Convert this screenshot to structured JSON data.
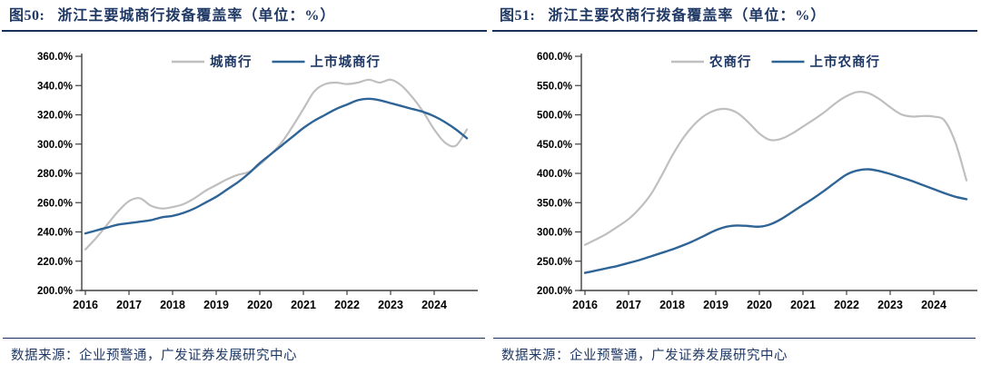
{
  "panels": [
    {
      "figure_label": "图50:",
      "title": "浙江主要城商行拨备覆盖率（单位：%）",
      "source": "数据来源：企业预警通，广发证券发展研究中心"
    },
    {
      "figure_label": "图51:",
      "title": "浙江主要农商行拨备覆盖率（单位：%）",
      "source": "数据来源：企业预警通，广发证券发展研究中心"
    }
  ],
  "colors": {
    "accent_navy": "#1f3864",
    "series_gray": "#bfbfbf",
    "series_blue": "#2e6496",
    "axis": "#3f3f3f",
    "tick_text": "#000000"
  },
  "chart_data": [
    {
      "type": "line",
      "title": "浙江主要城商行拨备覆盖率（单位：%）",
      "xlabel": "",
      "ylabel": "",
      "ylim": [
        200,
        360
      ],
      "yticks": [
        200,
        220,
        240,
        260,
        280,
        300,
        320,
        340,
        360
      ],
      "y_tick_format": "one_decimal_percent",
      "xticks": [
        2016,
        2017,
        2018,
        2019,
        2020,
        2021,
        2022,
        2023,
        2024
      ],
      "grid": false,
      "legend_position": "top-center",
      "layout": {
        "axis_x": 90
      },
      "x": [
        2016.0,
        2016.25,
        2016.5,
        2016.75,
        2017.0,
        2017.25,
        2017.5,
        2017.75,
        2018.0,
        2018.25,
        2018.5,
        2018.75,
        2019.0,
        2019.25,
        2019.5,
        2019.75,
        2020.0,
        2020.25,
        2020.5,
        2020.75,
        2021.0,
        2021.25,
        2021.5,
        2021.75,
        2022.0,
        2022.25,
        2022.5,
        2022.75,
        2023.0,
        2023.25,
        2023.5,
        2023.75,
        2024.0,
        2024.25,
        2024.5,
        2024.75
      ],
      "series": [
        {
          "name": "城商行",
          "color_key": "series_gray",
          "stroke_width": 2.2,
          "values": [
            228,
            236,
            245,
            254,
            261,
            263,
            258,
            256,
            257,
            259,
            263,
            268,
            272,
            276,
            279,
            281,
            286,
            293,
            301,
            312,
            324,
            336,
            341,
            342,
            341,
            342,
            344,
            342,
            344,
            340,
            332,
            322,
            310,
            301,
            299,
            310
          ]
        },
        {
          "name": "上市城商行",
          "color_key": "series_blue",
          "stroke_width": 2.4,
          "values": [
            239,
            241,
            243,
            245,
            246,
            247,
            248,
            250,
            251,
            253,
            256,
            260,
            264,
            269,
            274,
            280,
            287,
            293,
            299,
            305,
            311,
            316,
            320,
            324,
            327,
            330,
            331,
            330,
            328,
            326,
            324,
            322,
            319,
            315,
            310,
            304
          ]
        }
      ]
    },
    {
      "type": "line",
      "title": "浙江主要农商行拨备覆盖率（单位：%）",
      "xlabel": "",
      "ylabel": "",
      "ylim": [
        200,
        600
      ],
      "yticks": [
        200,
        250,
        300,
        350,
        400,
        450,
        500,
        550,
        600
      ],
      "y_tick_format": "one_decimal_percent",
      "xticks": [
        2016,
        2017,
        2018,
        2019,
        2020,
        2021,
        2022,
        2023,
        2024
      ],
      "grid": false,
      "legend_position": "top-center",
      "layout": {
        "axis_x": 100
      },
      "x": [
        2016.0,
        2016.25,
        2016.5,
        2016.75,
        2017.0,
        2017.25,
        2017.5,
        2017.75,
        2018.0,
        2018.25,
        2018.5,
        2018.75,
        2019.0,
        2019.25,
        2019.5,
        2019.75,
        2020.0,
        2020.25,
        2020.5,
        2020.75,
        2021.0,
        2021.25,
        2021.5,
        2021.75,
        2022.0,
        2022.25,
        2022.5,
        2022.75,
        2023.0,
        2023.25,
        2023.5,
        2023.75,
        2024.0,
        2024.25,
        2024.5,
        2024.75
      ],
      "series": [
        {
          "name": "农商行",
          "color_key": "series_gray",
          "stroke_width": 2.2,
          "values": [
            278,
            287,
            297,
            309,
            322,
            340,
            363,
            395,
            430,
            460,
            483,
            499,
            508,
            510,
            503,
            487,
            468,
            457,
            459,
            468,
            480,
            492,
            505,
            520,
            532,
            539,
            537,
            527,
            513,
            501,
            497,
            498,
            497,
            490,
            452,
            388
          ]
        },
        {
          "name": "上市农商行",
          "color_key": "series_blue",
          "stroke_width": 2.4,
          "values": [
            230,
            234,
            238,
            242,
            247,
            252,
            258,
            264,
            270,
            277,
            285,
            294,
            303,
            309,
            311,
            310,
            309,
            313,
            322,
            334,
            346,
            358,
            371,
            385,
            398,
            405,
            407,
            404,
            399,
            393,
            387,
            380,
            373,
            366,
            360,
            356
          ]
        }
      ]
    }
  ]
}
